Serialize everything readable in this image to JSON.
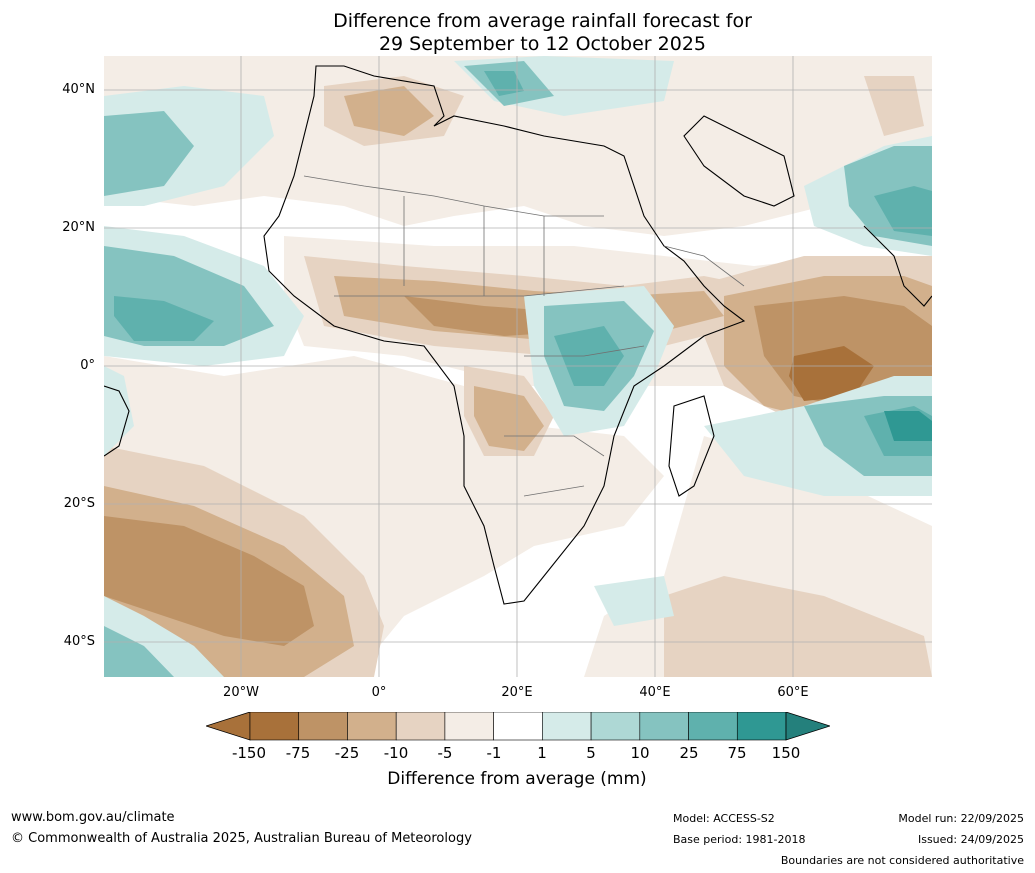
{
  "title": {
    "line1": "Difference from average rainfall forecast for",
    "line2": "29 September to 12 October 2025"
  },
  "axes": {
    "lat_labels": [
      "40°N",
      "20°N",
      "0°",
      "20°S",
      "40°S"
    ],
    "lon_labels": [
      "20°W",
      "0°",
      "20°E",
      "40°E",
      "60°E"
    ]
  },
  "colorbar": {
    "title": "Difference from average (mm)",
    "tick_labels": [
      "-150",
      "-75",
      "-25",
      "-10",
      "-5",
      "-1",
      "1",
      "5",
      "10",
      "25",
      "75",
      "150"
    ],
    "colors": [
      "#a8713a",
      "#be9366",
      "#d2b08c",
      "#e6d3c2",
      "#f4ede6",
      "#ffffff",
      "#d5ebe9",
      "#aed8d5",
      "#85c3c0",
      "#5fb1ad",
      "#2f9893",
      "#24807c"
    ]
  },
  "footer": {
    "website": "www.bom.gov.au/climate",
    "copyright": "© Commonwealth of Australia 2025, Australian Bureau of Meteorology",
    "model": "Model: ACCESS-S2",
    "base_period": "Base period: 1981-2018",
    "model_run": "Model run: 22/09/2025",
    "issued": "Issued: 24/09/2025",
    "disclaimer": "Boundaries are not considered authoritative"
  }
}
